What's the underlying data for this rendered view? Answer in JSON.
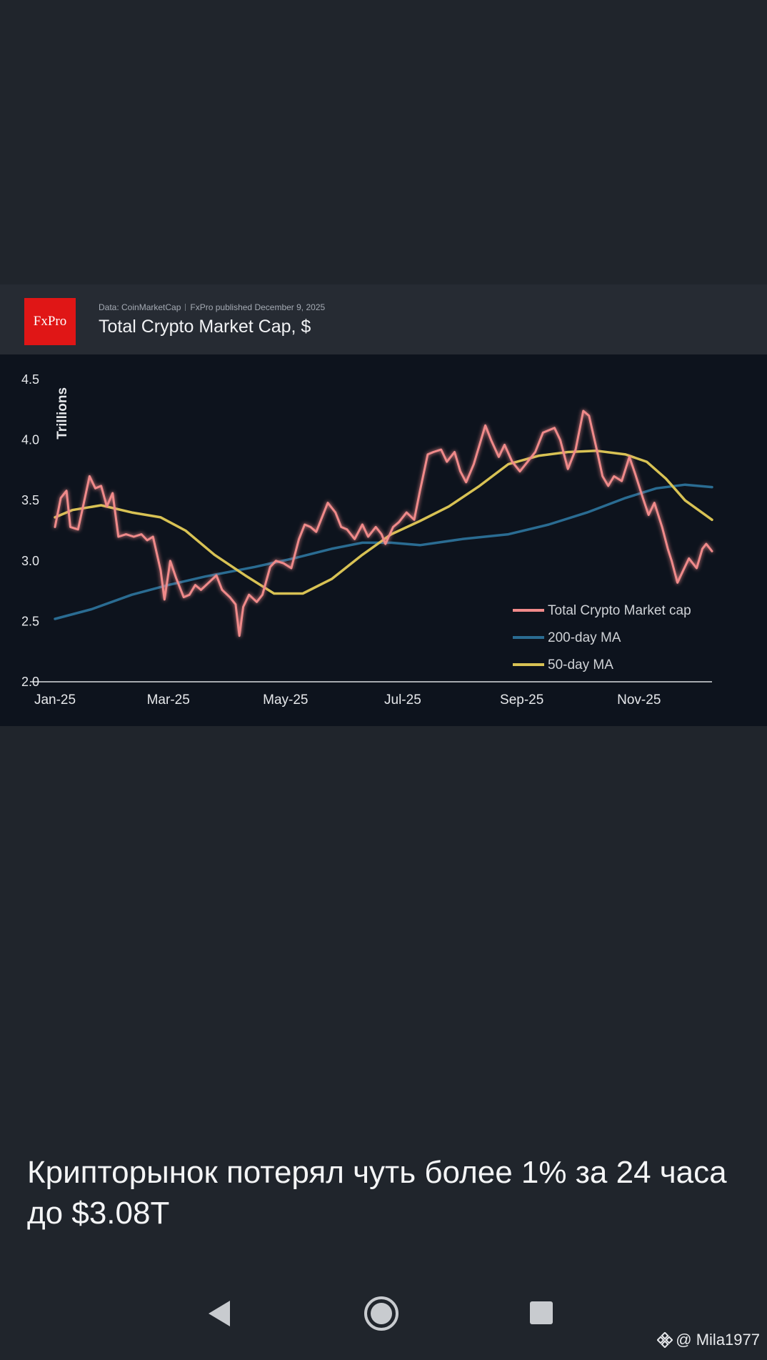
{
  "card": {
    "logo_text": "FxPro",
    "source": "Data: CoinMarketCap",
    "publisher": "FxPro published December 9, 2025",
    "title": "Total Crypto Market Cap, $"
  },
  "chart_data": {
    "type": "line",
    "ylabel": "Trillions",
    "xlabel": "",
    "ylim": [
      2.0,
      4.5
    ],
    "yticks": [
      "2.0",
      "2.5",
      "3.0",
      "3.5",
      "4.0",
      "4.5"
    ],
    "xticks": [
      "Jan-25",
      "Mar-25",
      "May-25",
      "Jul-25",
      "Sep-25",
      "Nov-25"
    ],
    "grid": false,
    "legend_position": "bottom-right",
    "series": [
      {
        "name": "Total Crypto Market cap",
        "color": "#f08a8a",
        "points": [
          [
            "2025-01-01",
            3.28
          ],
          [
            "2025-01-04",
            3.52
          ],
          [
            "2025-01-07",
            3.58
          ],
          [
            "2025-01-09",
            3.28
          ],
          [
            "2025-01-13",
            3.26
          ],
          [
            "2025-01-16",
            3.48
          ],
          [
            "2025-01-19",
            3.7
          ],
          [
            "2025-01-22",
            3.6
          ],
          [
            "2025-01-25",
            3.62
          ],
          [
            "2025-01-28",
            3.45
          ],
          [
            "2025-01-31",
            3.56
          ],
          [
            "2025-02-03",
            3.2
          ],
          [
            "2025-02-07",
            3.22
          ],
          [
            "2025-02-11",
            3.2
          ],
          [
            "2025-02-15",
            3.22
          ],
          [
            "2025-02-18",
            3.17
          ],
          [
            "2025-02-21",
            3.2
          ],
          [
            "2025-02-25",
            2.92
          ],
          [
            "2025-02-27",
            2.68
          ],
          [
            "2025-03-02",
            3.0
          ],
          [
            "2025-03-05",
            2.86
          ],
          [
            "2025-03-09",
            2.7
          ],
          [
            "2025-03-12",
            2.72
          ],
          [
            "2025-03-15",
            2.8
          ],
          [
            "2025-03-18",
            2.76
          ],
          [
            "2025-03-22",
            2.82
          ],
          [
            "2025-03-26",
            2.88
          ],
          [
            "2025-03-29",
            2.76
          ],
          [
            "2025-04-02",
            2.7
          ],
          [
            "2025-04-05",
            2.64
          ],
          [
            "2025-04-07",
            2.38
          ],
          [
            "2025-04-09",
            2.62
          ],
          [
            "2025-04-12",
            2.72
          ],
          [
            "2025-04-16",
            2.66
          ],
          [
            "2025-04-19",
            2.72
          ],
          [
            "2025-04-23",
            2.95
          ],
          [
            "2025-04-26",
            3.0
          ],
          [
            "2025-04-30",
            2.98
          ],
          [
            "2025-05-04",
            2.94
          ],
          [
            "2025-05-08",
            3.18
          ],
          [
            "2025-05-11",
            3.3
          ],
          [
            "2025-05-14",
            3.28
          ],
          [
            "2025-05-17",
            3.24
          ],
          [
            "2025-05-21",
            3.4
          ],
          [
            "2025-05-23",
            3.48
          ],
          [
            "2025-05-27",
            3.4
          ],
          [
            "2025-05-30",
            3.28
          ],
          [
            "2025-06-02",
            3.26
          ],
          [
            "2025-06-06",
            3.18
          ],
          [
            "2025-06-10",
            3.3
          ],
          [
            "2025-06-13",
            3.2
          ],
          [
            "2025-06-17",
            3.28
          ],
          [
            "2025-06-20",
            3.22
          ],
          [
            "2025-06-22",
            3.14
          ],
          [
            "2025-06-26",
            3.28
          ],
          [
            "2025-06-29",
            3.32
          ],
          [
            "2025-07-03",
            3.4
          ],
          [
            "2025-07-07",
            3.34
          ],
          [
            "2025-07-10",
            3.58
          ],
          [
            "2025-07-14",
            3.88
          ],
          [
            "2025-07-17",
            3.9
          ],
          [
            "2025-07-21",
            3.92
          ],
          [
            "2025-07-24",
            3.82
          ],
          [
            "2025-07-28",
            3.9
          ],
          [
            "2025-07-31",
            3.74
          ],
          [
            "2025-08-03",
            3.65
          ],
          [
            "2025-08-07",
            3.8
          ],
          [
            "2025-08-10",
            3.96
          ],
          [
            "2025-08-13",
            4.12
          ],
          [
            "2025-08-16",
            4.0
          ],
          [
            "2025-08-20",
            3.86
          ],
          [
            "2025-08-23",
            3.96
          ],
          [
            "2025-08-27",
            3.82
          ],
          [
            "2025-08-31",
            3.74
          ],
          [
            "2025-09-04",
            3.82
          ],
          [
            "2025-09-08",
            3.9
          ],
          [
            "2025-09-12",
            4.06
          ],
          [
            "2025-09-15",
            4.08
          ],
          [
            "2025-09-18",
            4.1
          ],
          [
            "2025-09-21",
            4.0
          ],
          [
            "2025-09-25",
            3.76
          ],
          [
            "2025-09-29",
            3.92
          ],
          [
            "2025-10-03",
            4.24
          ],
          [
            "2025-10-06",
            4.2
          ],
          [
            "2025-10-10",
            3.92
          ],
          [
            "2025-10-13",
            3.7
          ],
          [
            "2025-10-16",
            3.62
          ],
          [
            "2025-10-19",
            3.7
          ],
          [
            "2025-10-23",
            3.66
          ],
          [
            "2025-10-27",
            3.86
          ],
          [
            "2025-10-30",
            3.72
          ],
          [
            "2025-11-03",
            3.52
          ],
          [
            "2025-11-06",
            3.38
          ],
          [
            "2025-11-09",
            3.48
          ],
          [
            "2025-11-13",
            3.28
          ],
          [
            "2025-11-16",
            3.1
          ],
          [
            "2025-11-18",
            3.0
          ],
          [
            "2025-11-21",
            2.82
          ],
          [
            "2025-11-24",
            2.92
          ],
          [
            "2025-11-27",
            3.02
          ],
          [
            "2025-12-01",
            2.94
          ],
          [
            "2025-12-04",
            3.1
          ],
          [
            "2025-12-06",
            3.14
          ],
          [
            "2025-12-09",
            3.08
          ]
        ]
      },
      {
        "name": "200-day MA",
        "color": "#2a6c92",
        "points": [
          [
            "2025-01-01",
            2.52
          ],
          [
            "2025-01-20",
            2.6
          ],
          [
            "2025-02-10",
            2.72
          ],
          [
            "2025-03-01",
            2.8
          ],
          [
            "2025-03-20",
            2.87
          ],
          [
            "2025-04-15",
            2.95
          ],
          [
            "2025-05-05",
            3.02
          ],
          [
            "2025-05-25",
            3.1
          ],
          [
            "2025-06-10",
            3.15
          ],
          [
            "2025-06-25",
            3.15
          ],
          [
            "2025-07-10",
            3.13
          ],
          [
            "2025-08-01",
            3.18
          ],
          [
            "2025-08-25",
            3.22
          ],
          [
            "2025-09-15",
            3.3
          ],
          [
            "2025-10-05",
            3.4
          ],
          [
            "2025-10-25",
            3.52
          ],
          [
            "2025-11-10",
            3.6
          ],
          [
            "2025-11-25",
            3.63
          ],
          [
            "2025-12-09",
            3.61
          ]
        ]
      },
      {
        "name": "50-day MA",
        "color": "#d8c254",
        "points": [
          [
            "2025-01-01",
            3.36
          ],
          [
            "2025-01-10",
            3.42
          ],
          [
            "2025-01-25",
            3.46
          ],
          [
            "2025-02-10",
            3.4
          ],
          [
            "2025-02-25",
            3.36
          ],
          [
            "2025-03-10",
            3.25
          ],
          [
            "2025-03-25",
            3.05
          ],
          [
            "2025-04-10",
            2.88
          ],
          [
            "2025-04-25",
            2.73
          ],
          [
            "2025-05-10",
            2.73
          ],
          [
            "2025-05-25",
            2.85
          ],
          [
            "2025-06-10",
            3.05
          ],
          [
            "2025-06-25",
            3.22
          ],
          [
            "2025-07-10",
            3.33
          ],
          [
            "2025-07-25",
            3.45
          ],
          [
            "2025-08-10",
            3.62
          ],
          [
            "2025-08-25",
            3.8
          ],
          [
            "2025-09-10",
            3.87
          ],
          [
            "2025-09-25",
            3.9
          ],
          [
            "2025-10-10",
            3.91
          ],
          [
            "2025-10-25",
            3.88
          ],
          [
            "2025-11-05",
            3.82
          ],
          [
            "2025-11-15",
            3.68
          ],
          [
            "2025-11-25",
            3.5
          ],
          [
            "2025-12-09",
            3.34
          ]
        ]
      }
    ]
  },
  "caption": "Крипторынок потерял чуть более 1% за 24 часа до $3.08T",
  "navbar": {
    "back_icon": "back-triangle-icon",
    "home_icon": "home-circle-icon",
    "recent_icon": "recent-apps-square-icon"
  },
  "watermark": {
    "handle": "@ Mila1977",
    "icon": "binance-diamond-icon"
  },
  "colors": {
    "background": "#20252c",
    "header_bg": "#262b33",
    "chart_bg": "#0d131d",
    "logo_bg": "#e01616"
  }
}
